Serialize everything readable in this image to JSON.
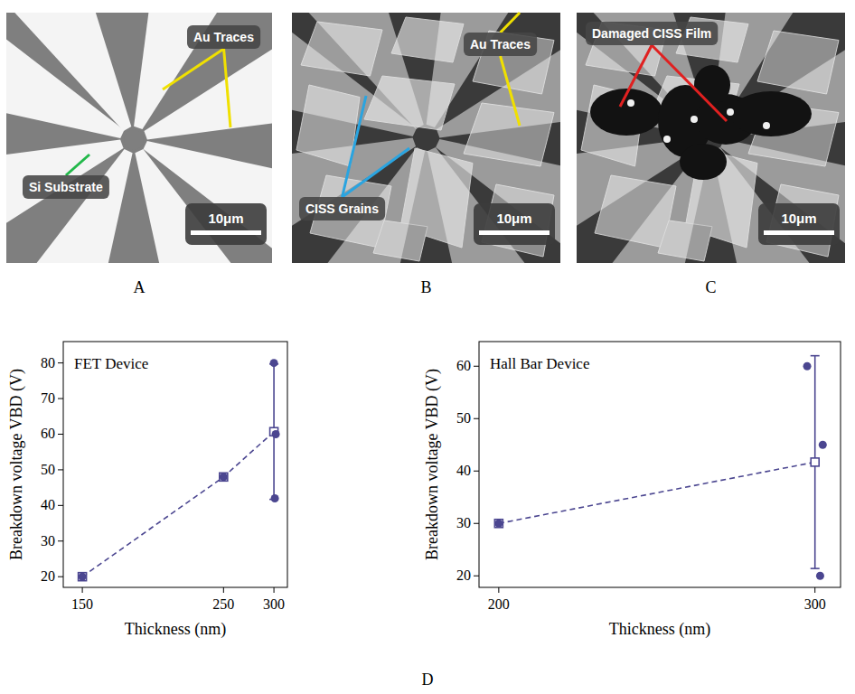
{
  "panels": [
    {
      "letter": "A",
      "labels": [
        {
          "text": "Au Traces",
          "color": "#f0e000"
        },
        {
          "text": "Si Substrate",
          "color": "#22b84a"
        }
      ],
      "scale_bar": "10μm"
    },
    {
      "letter": "B",
      "labels": [
        {
          "text": "Au Traces",
          "color": "#f0e000"
        },
        {
          "text": "CISS Grains",
          "color": "#2aa4e0"
        }
      ],
      "scale_bar": "10μm"
    },
    {
      "letter": "C",
      "labels": [
        {
          "text": "Damaged CISS Film",
          "color": "#e02020"
        }
      ],
      "scale_bar": "10μm"
    }
  ],
  "figure_letter": "D",
  "chart_data": [
    {
      "type": "scatter",
      "annotation": "FET Device",
      "xlabel": "Thickness (nm)",
      "ylabel": "Breakdown voltage VBD (V)",
      "log": "x",
      "xlim": [
        140,
        315
      ],
      "xticks": [
        150,
        250,
        300
      ],
      "ylim": [
        17,
        86
      ],
      "yticks": [
        20,
        30,
        40,
        50,
        60,
        70,
        80
      ],
      "color": "#4b4690",
      "series": [
        {
          "type": "line",
          "line_style": "dashed",
          "marker": "square",
          "x": [
            150,
            250,
            300
          ],
          "values": [
            20,
            48,
            60.7
          ],
          "errors": [
            null,
            null,
            19
          ]
        },
        {
          "type": "scatter",
          "marker": "circle",
          "x": [
            150,
            250,
            300,
            302,
            301
          ],
          "values": [
            20,
            48,
            80,
            60,
            42
          ]
        }
      ]
    },
    {
      "type": "scatter",
      "annotation": "Hall Bar Device",
      "xlabel": "Thickness (nm)",
      "ylabel": "Breakdown voltage VBD (V)",
      "log": "x",
      "xlim": [
        195,
        310
      ],
      "xticks": [
        200,
        300
      ],
      "ylim": [
        17.8,
        64.7
      ],
      "yticks": [
        20,
        30,
        40,
        50,
        60
      ],
      "color": "#4b4690",
      "series": [
        {
          "type": "line",
          "line_style": "dashed",
          "marker": "square",
          "x": [
            200,
            300
          ],
          "values": [
            30,
            41.7
          ],
          "errors": [
            null,
            20.3
          ]
        },
        {
          "type": "scatter",
          "marker": "circle",
          "x": [
            200,
            297,
            303,
            302
          ],
          "values": [
            30,
            60,
            45,
            20
          ]
        }
      ]
    }
  ]
}
